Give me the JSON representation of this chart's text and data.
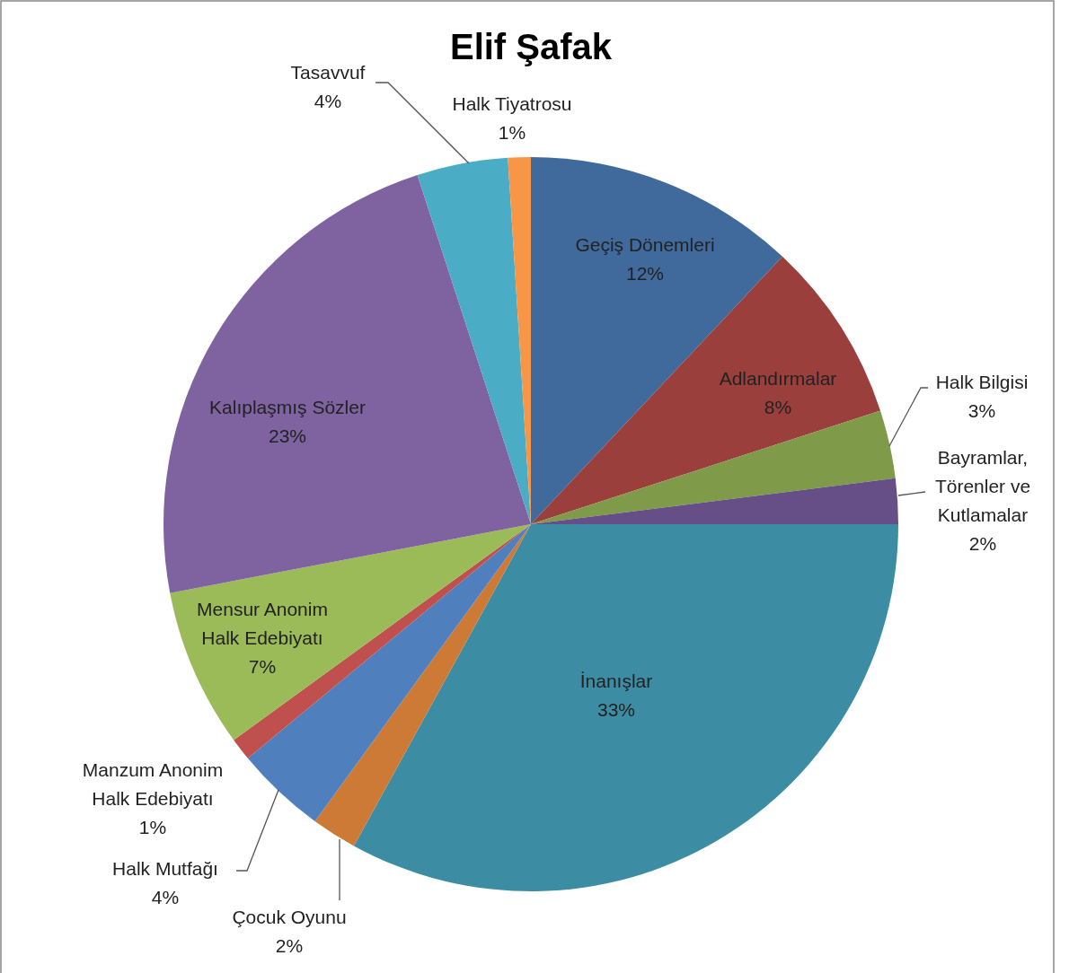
{
  "chart_data": {
    "type": "pie",
    "title": "Elif Şafak",
    "categories": [
      "Geçiş Dönemleri",
      "Adlandırmalar",
      "Halk Bilgisi",
      "Bayramlar, Törenler ve Kutlamalar",
      "İnanışlar",
      "Çocuk Oyunu",
      "Halk Mutfağı",
      "Manzum Anonim Halk Edebiyatı",
      "Mensur Anonim Halk Edebiyatı",
      "Kalıplaşmış Sözler",
      "Tasavvuf",
      "Halk Tiyatrosu"
    ],
    "values": [
      12,
      8,
      3,
      2,
      33,
      2,
      4,
      1,
      7,
      23,
      4,
      1
    ],
    "colors": [
      "#406a9c",
      "#9b3f3c",
      "#7f9a48",
      "#654f86",
      "#3c8da3",
      "#cc7a35",
      "#4f80bd",
      "#c0504d",
      "#9bbb59",
      "#7f63a0",
      "#4bacc6",
      "#f79646"
    ],
    "value_labels": [
      "12%",
      "8%",
      "3%",
      "2%",
      "33%",
      "2%",
      "4%",
      "1%",
      "7%",
      "23%",
      "4%",
      "1%"
    ]
  }
}
